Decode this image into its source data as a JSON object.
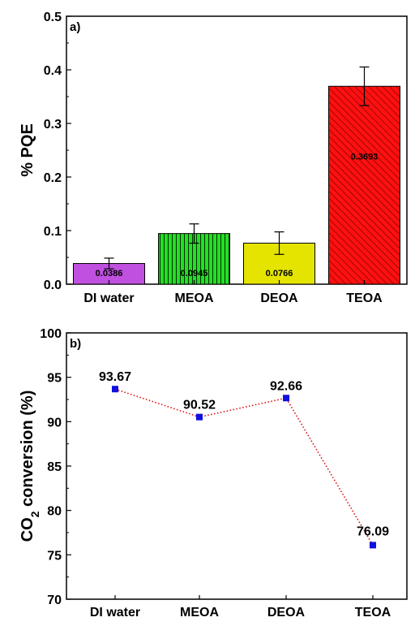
{
  "chart_data": [
    {
      "type": "bar",
      "panel_label": "a)",
      "ylabel": "% PQE",
      "xlabel": "",
      "categories": [
        "DI water",
        "MEOA",
        "DEOA",
        "TEOA"
      ],
      "values": [
        0.0386,
        0.0945,
        0.0766,
        0.3693
      ],
      "value_labels": [
        "0.0386",
        "0.0945",
        "0.0766",
        "0.3693"
      ],
      "error": [
        0.01,
        0.018,
        0.021,
        0.036
      ],
      "bar_colors": [
        "#c050e0",
        "#22e022",
        "#e4e400",
        "#ff1010"
      ],
      "bar_patterns": [
        "none",
        "vertical",
        "none",
        "diagonal"
      ],
      "ylim": [
        0,
        0.5
      ],
      "yticks": [
        "0.0",
        "0.1",
        "0.2",
        "0.3",
        "0.4",
        "0.5"
      ],
      "grid": false
    },
    {
      "type": "line",
      "panel_label": "b)",
      "ylabel": "CO₂ conversion (%)",
      "ylabel_main": "CO",
      "ylabel_sub": "2",
      "ylabel_rest": " conversion (%)",
      "xlabel": "",
      "categories": [
        "DI water",
        "MEOA",
        "DEOA",
        "TEOA"
      ],
      "values": [
        93.67,
        90.52,
        92.66,
        76.09
      ],
      "value_labels": [
        "93.67",
        "90.52",
        "92.66",
        "76.09"
      ],
      "marker_color": "#1010e0",
      "line_color": "#e01010",
      "line_style": "dotted",
      "ylim": [
        70,
        100
      ],
      "yticks": [
        "70",
        "75",
        "80",
        "85",
        "90",
        "95",
        "100"
      ],
      "grid": false
    }
  ]
}
